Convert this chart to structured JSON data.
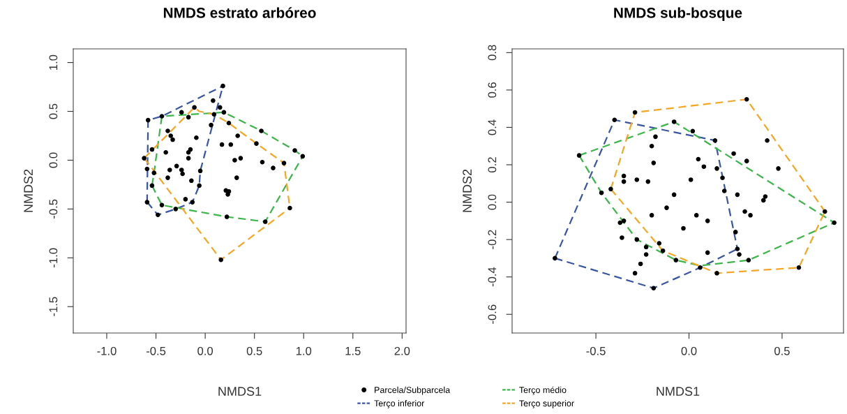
{
  "chart_data": [
    {
      "type": "scatter",
      "title": "NMDS estrato arbóreo",
      "xlabel": "NMDS1",
      "ylabel": "NMDS2",
      "xlim": [
        -1.34,
        2.04
      ],
      "ylim": [
        -1.77,
        1.14
      ],
      "xticks": [
        {
          "value": -1,
          "label": "-1.0"
        },
        {
          "value": -0.5,
          "label": "-0.5"
        },
        {
          "value": 0,
          "label": "0.0"
        },
        {
          "value": 0.5,
          "label": "0.5"
        },
        {
          "value": 1,
          "label": "1.0"
        },
        {
          "value": 1.5,
          "label": "1.5"
        },
        {
          "value": 2,
          "label": "2.0"
        }
      ],
      "yticks": [
        {
          "value": -1.5,
          "label": "-1.5"
        },
        {
          "value": -1,
          "label": "-1.0"
        },
        {
          "value": -0.5,
          "label": "-0.5"
        },
        {
          "value": 0,
          "label": "0.0"
        },
        {
          "value": 0.5,
          "label": "0.5"
        },
        {
          "value": 1,
          "label": "1.0"
        }
      ],
      "legend": "bottom",
      "series": [
        {
          "name": "Parcela/Subparcela",
          "marker": "circle",
          "color": "#000000",
          "x": [
            0.18,
            0.08,
            0.15,
            -0.11,
            -0.24,
            0.19,
            -0.17,
            0.09,
            -0.58,
            -0.44,
            0.06,
            0.24,
            -0.38,
            0.57,
            -0.35,
            -0.33,
            0.33,
            -0.09,
            0.17,
            0.26,
            0.52,
            -0.54,
            -0.4,
            -0.15,
            -0.17,
            -0.17,
            0.91,
            0.99,
            -0.62,
            0.3,
            0.36,
            0.8,
            0.58,
            0.69,
            -0.59,
            -0.52,
            -0.36,
            -0.29,
            -0.24,
            -0.23,
            -0.05,
            -0.38,
            -0.14,
            -0.54,
            -0.06,
            0.32,
            0.21,
            0.24,
            0.23,
            -0.2,
            -0.59,
            -0.44,
            -0.3,
            0.86,
            -0.48,
            0.22,
            0.61,
            0.16,
            -0.13
          ],
          "values": [
            0.76,
            0.61,
            0.54,
            0.54,
            0.49,
            0.49,
            0.44,
            0.47,
            0.41,
            0.45,
            0.36,
            0.38,
            0.3,
            0.3,
            0.25,
            0.21,
            0.25,
            0.23,
            0.16,
            0.16,
            0.17,
            0.11,
            0.08,
            0.11,
            0.08,
            0.02,
            0.1,
            0.04,
            0.02,
            0.0,
            0.02,
            -0.03,
            -0.02,
            -0.08,
            -0.09,
            -0.13,
            -0.1,
            -0.06,
            -0.1,
            -0.14,
            -0.11,
            -0.18,
            -0.21,
            -0.26,
            -0.26,
            -0.18,
            -0.31,
            -0.32,
            -0.35,
            -0.4,
            -0.43,
            -0.46,
            -0.5,
            -0.49,
            -0.56,
            -0.58,
            -0.63,
            -1.02,
            -0.43
          ]
        },
        {
          "name": "Terço inferior",
          "type": "line",
          "line_style": "dashed",
          "color": "#3a55a4",
          "x": [
            -0.59,
            -0.58,
            -0.44,
            0.18
          ],
          "values": [
            -0.43,
            0.41,
            0.45,
            0.76
          ]
        },
        {
          "type": "line",
          "line_style": "dashed",
          "color": "#3a55a4",
          "x": [
            -0.59,
            -0.48,
            -0.3,
            -0.13,
            -0.06,
            -0.05,
            0.18
          ],
          "values": [
            -0.43,
            -0.56,
            -0.5,
            -0.43,
            -0.26,
            -0.11,
            0.76
          ]
        },
        {
          "name": "Terço médio",
          "type": "line",
          "line_style": "dashed",
          "color": "#3cb54a",
          "x": [
            -0.54,
            -0.52,
            -0.44,
            0.19,
            0.57,
            0.91,
            0.99
          ],
          "values": [
            -0.26,
            -0.13,
            0.45,
            0.49,
            0.3,
            0.1,
            0.04
          ]
        },
        {
          "type": "line",
          "line_style": "dashed",
          "color": "#3cb54a",
          "x": [
            -0.54,
            -0.44,
            0.22,
            0.61,
            0.99
          ],
          "values": [
            -0.26,
            -0.46,
            -0.58,
            -0.63,
            0.04
          ]
        },
        {
          "name": "Terço superior",
          "type": "line",
          "line_style": "dashed",
          "color": "#f5a623",
          "x": [
            -0.62,
            -0.11,
            -0.06,
            0.09,
            0.24,
            0.52,
            0.8,
            0.86
          ],
          "values": [
            0.02,
            0.54,
            0.5,
            0.47,
            0.38,
            0.17,
            -0.03,
            -0.49
          ]
        },
        {
          "type": "line",
          "line_style": "dashed",
          "color": "#f5a623",
          "x": [
            -0.62,
            -0.58,
            0.16,
            0.86
          ],
          "values": [
            0.02,
            -0.03,
            -1.02,
            -0.49
          ]
        }
      ]
    },
    {
      "type": "scatter",
      "title": "NMDS sub-bosque",
      "xlabel": "NMDS1",
      "ylabel": "NMDS2",
      "xlim": [
        -0.95,
        0.83
      ],
      "ylim": [
        -0.7,
        0.82
      ],
      "xticks": [
        {
          "value": -0.5,
          "label": "-0.5"
        },
        {
          "value": 0,
          "label": "0.0"
        },
        {
          "value": 0.5,
          "label": "0.5"
        }
      ],
      "yticks": [
        {
          "value": -0.6,
          "label": "-0.6"
        },
        {
          "value": -0.4,
          "label": "-0.4"
        },
        {
          "value": -0.2,
          "label": "-0.2"
        },
        {
          "value": 0,
          "label": "0.0"
        },
        {
          "value": 0.2,
          "label": "0.2"
        },
        {
          "value": 0.4,
          "label": "0.4"
        },
        {
          "value": 0.6,
          "label": "0.6"
        },
        {
          "value": 0.8,
          "label": "0.8"
        }
      ],
      "series": [
        {
          "marker": "circle",
          "color": "#000000",
          "x": [
            0.31,
            -0.29,
            -0.4,
            -0.08,
            0.02,
            0.14,
            -0.18,
            -0.2,
            0.42,
            -0.59,
            0.24,
            0.31,
            -0.19,
            0.05,
            0.08,
            0.15,
            0.48,
            -0.35,
            -0.35,
            -0.28,
            -0.22,
            0.01,
            0.18,
            -0.42,
            -0.47,
            0.19,
            0.26,
            -0.08,
            0.41,
            0.4,
            -0.12,
            -0.2,
            0.04,
            0.3,
            0.33,
            0.1,
            0.73,
            0.78,
            -0.37,
            -0.35,
            -0.36,
            -0.03,
            -0.28,
            0.25,
            -0.23,
            -0.16,
            -0.14,
            -0.23,
            0.1,
            0.27,
            0.26,
            -0.07,
            0.32,
            -0.26,
            0.06,
            0.15,
            0.59,
            -0.29,
            -0.72,
            -0.19
          ],
          "values": [
            0.55,
            0.48,
            0.44,
            0.43,
            0.38,
            0.33,
            0.35,
            0.3,
            0.33,
            0.25,
            0.26,
            0.22,
            0.21,
            0.23,
            0.19,
            0.18,
            0.18,
            0.14,
            0.11,
            0.12,
            0.11,
            0.12,
            0.13,
            0.07,
            0.05,
            0.06,
            0.04,
            0.04,
            0.03,
            0.01,
            -0.03,
            -0.07,
            -0.07,
            -0.05,
            -0.07,
            -0.1,
            -0.05,
            -0.11,
            -0.11,
            -0.1,
            -0.19,
            -0.14,
            -0.2,
            -0.16,
            -0.24,
            -0.22,
            -0.26,
            -0.28,
            -0.27,
            -0.28,
            -0.25,
            -0.31,
            -0.31,
            -0.33,
            -0.35,
            -0.38,
            -0.35,
            -0.38,
            -0.3,
            -0.46
          ]
        },
        {
          "type": "line",
          "line_style": "dashed",
          "color": "#3a55a4",
          "x": [
            -0.72,
            -0.4,
            0.14,
            0.26
          ],
          "values": [
            -0.3,
            0.44,
            0.33,
            -0.25
          ]
        },
        {
          "type": "line",
          "line_style": "dashed",
          "color": "#3a55a4",
          "x": [
            -0.72,
            -0.19,
            0.06,
            0.26
          ],
          "values": [
            -0.3,
            -0.46,
            -0.35,
            -0.25
          ]
        },
        {
          "type": "line",
          "line_style": "dashed",
          "color": "#3cb54a",
          "x": [
            -0.59,
            -0.08,
            0.78
          ],
          "values": [
            0.25,
            0.43,
            -0.11
          ]
        },
        {
          "type": "line",
          "line_style": "dashed",
          "color": "#3cb54a",
          "x": [
            -0.59,
            -0.47,
            -0.28,
            -0.07,
            0.06,
            0.32,
            0.78
          ],
          "values": [
            0.25,
            0.05,
            -0.2,
            -0.31,
            -0.34,
            -0.31,
            -0.11
          ]
        },
        {
          "type": "line",
          "line_style": "dashed",
          "color": "#f5a623",
          "x": [
            -0.42,
            -0.29,
            0.31,
            0.73
          ],
          "values": [
            0.07,
            0.48,
            0.55,
            -0.05
          ]
        },
        {
          "type": "line",
          "line_style": "dashed",
          "color": "#f5a623",
          "x": [
            -0.42,
            -0.14,
            0.15,
            0.59,
            0.73
          ],
          "values": [
            0.07,
            -0.26,
            -0.38,
            -0.35,
            -0.05
          ]
        }
      ]
    }
  ]
}
